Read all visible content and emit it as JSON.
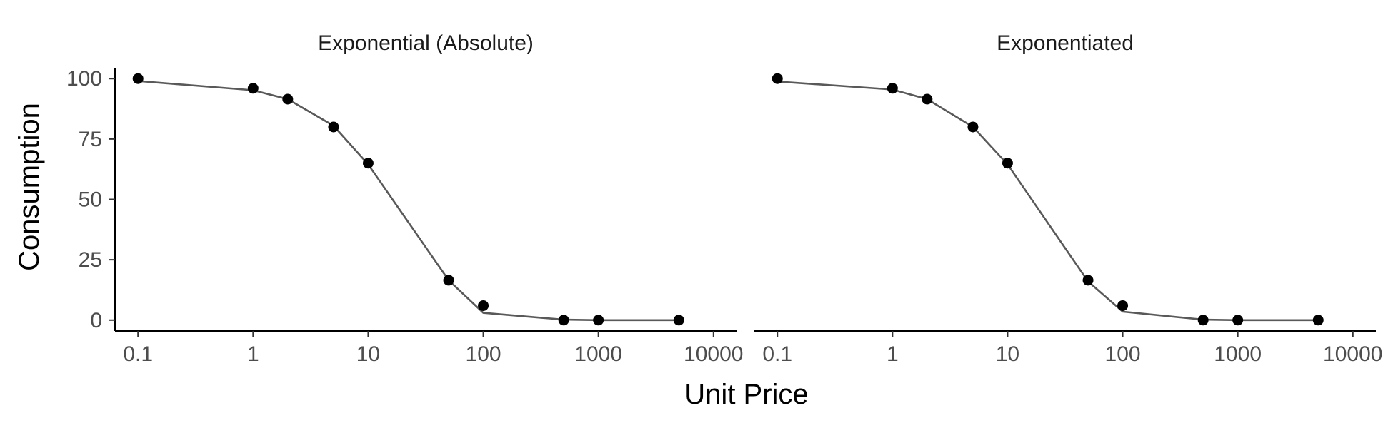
{
  "chart_data": {
    "type": "scatter",
    "x_scale": "log10",
    "xlabel": "Unit Price",
    "ylabel": "Consumption",
    "xlim": [
      0.0631,
      15849
    ],
    "ylim": [
      -4.5,
      104.5
    ],
    "x_ticks": [
      0.1,
      1,
      10,
      100,
      1000,
      10000
    ],
    "x_tick_labels": [
      "0.1",
      "1",
      "10",
      "100",
      "1000",
      "10000"
    ],
    "y_ticks": [
      0,
      25,
      50,
      75,
      100
    ],
    "y_tick_labels": [
      "0",
      "25",
      "50",
      "75",
      "100"
    ],
    "grid": false,
    "legend": "none",
    "colors": {
      "points": "#000000",
      "line": "#595959",
      "axis": "#000000"
    },
    "panels": [
      {
        "title": "Exponential (Absolute)",
        "points": {
          "x": [
            0.1,
            1,
            2,
            5,
            10,
            50,
            100,
            500,
            1000,
            5000
          ],
          "y": [
            100,
            96,
            91.5,
            80,
            65,
            16.5,
            6,
            0,
            0,
            0
          ]
        },
        "fit": {
          "x": [
            0.1,
            1,
            2,
            5,
            10,
            50,
            100,
            500,
            1000,
            5000
          ],
          "y": [
            99,
            95.2,
            91.5,
            80.5,
            64.5,
            16.5,
            3,
            0.2,
            0,
            0
          ]
        }
      },
      {
        "title": "Exponentiated",
        "points": {
          "x": [
            0.1,
            1,
            2,
            5,
            10,
            50,
            100,
            500,
            1000,
            5000
          ],
          "y": [
            100,
            96,
            91.5,
            80,
            65,
            16.5,
            6,
            0,
            0,
            0
          ]
        },
        "fit": {
          "x": [
            0.1,
            1,
            2,
            5,
            10,
            50,
            100,
            500,
            1000,
            5000
          ],
          "y": [
            98.8,
            95.5,
            91.5,
            80,
            64.5,
            16,
            3.5,
            0.2,
            0,
            0
          ]
        }
      }
    ]
  }
}
